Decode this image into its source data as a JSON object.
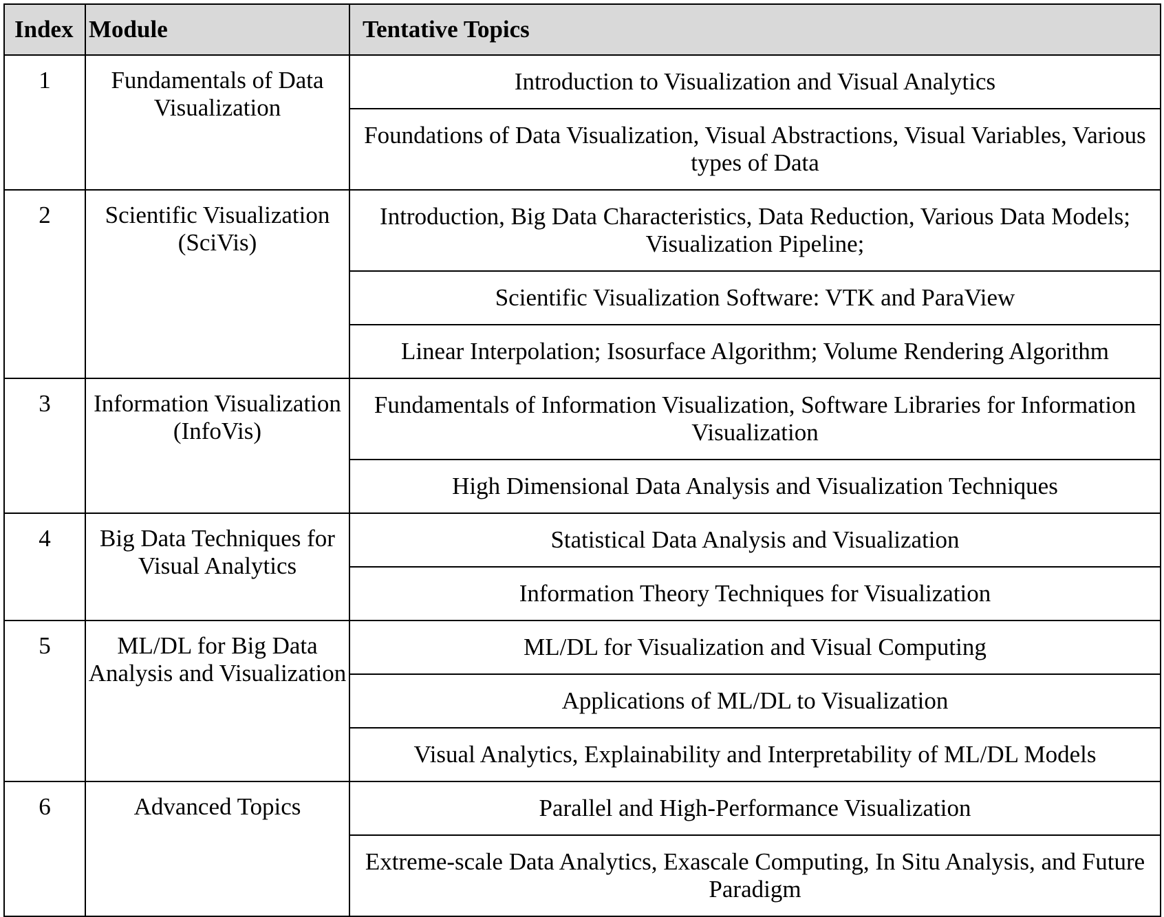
{
  "header": {
    "index": "Index",
    "module": "Module",
    "topics": "Tentative Topics"
  },
  "rows": [
    {
      "index": "1",
      "module": "Fundamentals of Data Visualization",
      "topics": [
        "Introduction to Visualization and Visual Analytics",
        "Foundations of Data Visualization, Visual Abstractions, Visual Variables, Various types of Data"
      ]
    },
    {
      "index": "2",
      "module": "Scientific Visualization (SciVis)",
      "topics": [
        "Introduction, Big Data Characteristics, Data Reduction, Various Data Models; Visualization Pipeline;",
        "Scientific Visualization Software: VTK and ParaView",
        "Linear Interpolation; Isosurface Algorithm; Volume Rendering Algorithm"
      ]
    },
    {
      "index": "3",
      "module": "Information Visualization (InfoVis)",
      "topics": [
        "Fundamentals of Information Visualization, Software Libraries for Information Visualization",
        "High Dimensional Data Analysis and Visualization Techniques"
      ]
    },
    {
      "index": "4",
      "module": "Big Data Techniques for Visual Analytics",
      "topics": [
        "Statistical Data Analysis and Visualization",
        "Information Theory Techniques for Visualization"
      ]
    },
    {
      "index": "5",
      "module": "ML/DL for Big Data Analysis and Visualization",
      "topics": [
        "ML/DL for Visualization and Visual Computing",
        "Applications of ML/DL to Visualization",
        "Visual Analytics, Explainability and Interpretability of ML/DL Models"
      ]
    },
    {
      "index": "6",
      "module": "Advanced Topics",
      "topics": [
        "Parallel and High-Performance Visualization",
        "Extreme-scale Data Analytics, Exascale Computing, In Situ Analysis, and Future Paradigm"
      ]
    }
  ]
}
